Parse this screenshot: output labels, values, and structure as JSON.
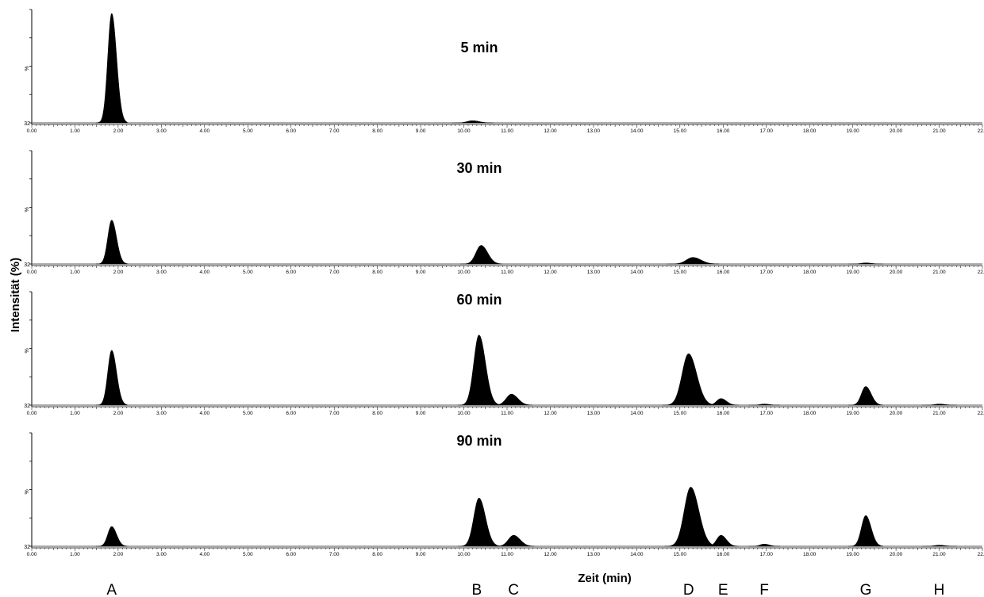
{
  "chart_data": {
    "type": "area",
    "ylabel": "Intensität (%)",
    "xlabel": "Zeit  (min)",
    "xlim": [
      0,
      22
    ],
    "x_ticks": [
      "0.00",
      "1.00",
      "2.00",
      "3.00",
      "4.00",
      "5.00",
      "6.00",
      "7.00",
      "8.00",
      "9.00",
      "10.00",
      "11.00",
      "12.00",
      "13.00",
      "14.00",
      "15.00",
      "16.00",
      "17.00",
      "18.00",
      "19.00",
      "20.00",
      "21.00",
      "22.0"
    ],
    "y_axis_text": {
      "percent": "%",
      "baseline": "32"
    },
    "ylim": [
      0,
      100
    ],
    "peak_labels": [
      {
        "label": "A",
        "x": 1.85
      },
      {
        "label": "B",
        "x": 10.3
      },
      {
        "label": "C",
        "x": 11.15
      },
      {
        "label": "D",
        "x": 15.2
      },
      {
        "label": "E",
        "x": 16.0
      },
      {
        "label": "F",
        "x": 16.95
      },
      {
        "label": "G",
        "x": 19.3
      },
      {
        "label": "H",
        "x": 21.0
      }
    ],
    "series": [
      {
        "name": "5 min",
        "peaks": [
          {
            "label": "A",
            "x": 1.85,
            "height": 100
          },
          {
            "label": "B",
            "x": 10.2,
            "height": 2
          }
        ]
      },
      {
        "name": "30 min",
        "peaks": [
          {
            "label": "A",
            "x": 1.85,
            "height": 40
          },
          {
            "label": "B",
            "x": 10.4,
            "height": 17
          },
          {
            "label": "D",
            "x": 15.3,
            "height": 6
          },
          {
            "label": "G",
            "x": 19.3,
            "height": 1
          }
        ]
      },
      {
        "name": "60 min",
        "peaks": [
          {
            "label": "A",
            "x": 1.85,
            "height": 50
          },
          {
            "label": "B",
            "x": 10.35,
            "height": 64
          },
          {
            "label": "C",
            "x": 11.1,
            "height": 10
          },
          {
            "label": "D",
            "x": 15.2,
            "height": 47
          },
          {
            "label": "E",
            "x": 15.95,
            "height": 6
          },
          {
            "label": "F",
            "x": 16.95,
            "height": 1
          },
          {
            "label": "G",
            "x": 19.3,
            "height": 17
          },
          {
            "label": "H",
            "x": 21.0,
            "height": 1
          }
        ]
      },
      {
        "name": "90 min",
        "peaks": [
          {
            "label": "A",
            "x": 1.85,
            "height": 18
          },
          {
            "label": "B",
            "x": 10.35,
            "height": 44
          },
          {
            "label": "C",
            "x": 11.15,
            "height": 10
          },
          {
            "label": "D",
            "x": 15.25,
            "height": 54
          },
          {
            "label": "E",
            "x": 15.95,
            "height": 10
          },
          {
            "label": "F",
            "x": 16.95,
            "height": 2
          },
          {
            "label": "G",
            "x": 19.3,
            "height": 28
          },
          {
            "label": "H",
            "x": 21.0,
            "height": 1
          }
        ]
      }
    ]
  }
}
